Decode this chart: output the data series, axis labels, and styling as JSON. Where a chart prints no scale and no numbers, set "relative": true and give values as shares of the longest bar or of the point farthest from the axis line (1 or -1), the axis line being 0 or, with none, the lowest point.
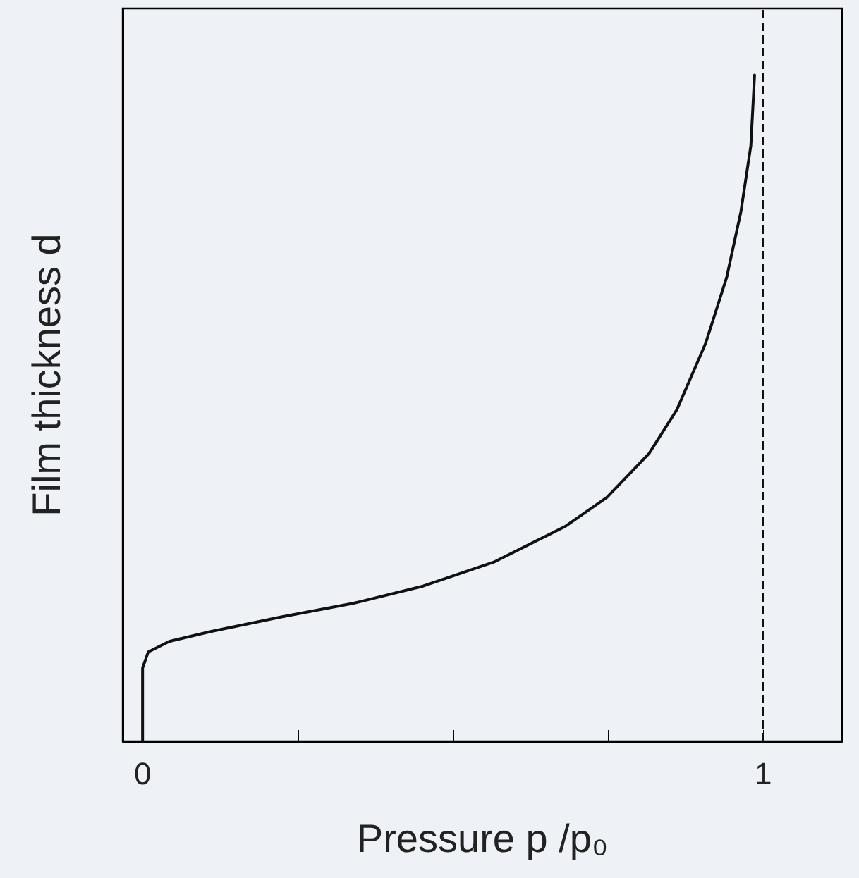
{
  "chart_data": {
    "type": "line",
    "relative": true,
    "xlabel": "Pressure p /p₀",
    "ylabel": "Film thickness d",
    "xlim": [
      -0.032,
      1.127
    ],
    "xticks": [
      0,
      {
        "value": 0.25,
        "label": null
      },
      {
        "value": 0.5,
        "label": null
      },
      {
        "value": 0.75,
        "label": null
      },
      1
    ],
    "x": [
      0,
      0,
      0.009,
      0.043,
      0.111,
      0.225,
      0.339,
      0.452,
      0.566,
      0.68,
      0.748,
      0.816,
      0.861,
      0.907,
      0.941,
      0.964,
      0.98,
      0.986
    ],
    "series": [
      {
        "color": "#111111",
        "values": [
          0,
          0.11,
          0.134,
          0.15,
          0.165,
          0.187,
          0.207,
          0.233,
          0.269,
          0.322,
          0.366,
          0.432,
          0.498,
          0.597,
          0.696,
          0.795,
          0.894,
          1
        ]
      }
    ],
    "ref_lines": [
      {
        "axis": "x",
        "value": 1,
        "line_style": "dashed",
        "color": "#111111"
      }
    ],
    "marker": "none",
    "line_style": "solid"
  }
}
